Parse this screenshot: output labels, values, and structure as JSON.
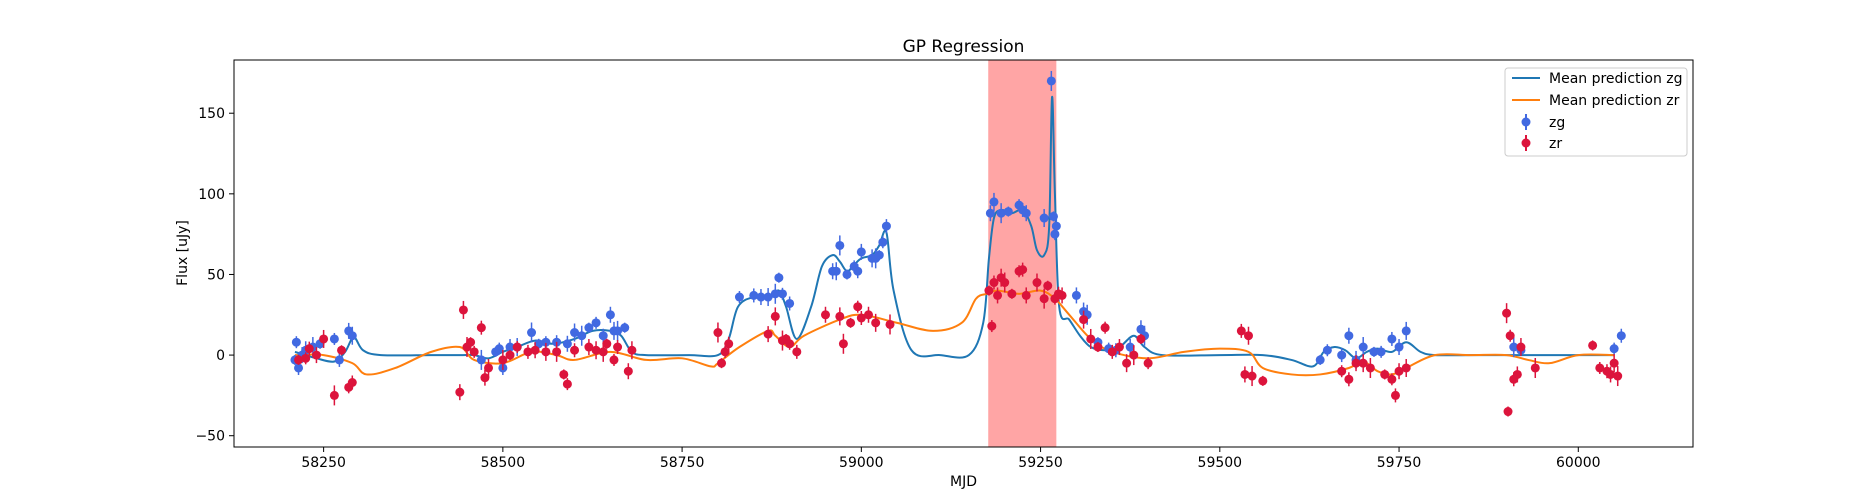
{
  "chart_data": {
    "type": "scatter",
    "title": "GP Regression",
    "xlabel": "MJD",
    "ylabel": "Flux [uJy]",
    "xlim": [
      58125,
      60160
    ],
    "ylim": [
      -57,
      183
    ],
    "xticks": [
      58250,
      58500,
      58750,
      59000,
      59250,
      59500,
      59750,
      60000
    ],
    "yticks": [
      -50,
      0,
      50,
      100,
      150
    ],
    "grid": false,
    "legend_position": "top-right",
    "highlight_span": {
      "x": [
        59177,
        59272
      ],
      "color": "#ff7f7f"
    },
    "series": [
      {
        "name": "Mean prediction zg",
        "kind": "line",
        "color": "#1f77b4",
        "x": [
          58210,
          58240,
          58265,
          58280,
          58292,
          58305,
          58330,
          58400,
          58440,
          58460,
          58480,
          58500,
          58520,
          58545,
          58570,
          58600,
          58625,
          58650,
          58665,
          58680,
          58700,
          58760,
          58800,
          58815,
          58828,
          58850,
          58875,
          58885,
          58895,
          58910,
          58930,
          58945,
          58960,
          58970,
          58980,
          58990,
          59000,
          59015,
          59025,
          59035,
          59045,
          59070,
          59110,
          59150,
          59170,
          59178,
          59185,
          59195,
          59210,
          59225,
          59237,
          59245,
          59255,
          59262,
          59266,
          59270,
          59276,
          59290,
          59305,
          59320,
          59340,
          59360,
          59380,
          59395,
          59420,
          59500,
          59560,
          59600,
          59630,
          59645,
          59660,
          59675,
          59690,
          59705,
          59720,
          59740,
          59760,
          59780,
          59800,
          59850,
          59900,
          59950,
          60000,
          60050
        ],
        "y": [
          2,
          -2,
          -4,
          2,
          11,
          3,
          0,
          0,
          0,
          0,
          -2,
          2,
          5,
          9,
          7,
          10,
          15,
          15,
          12,
          2,
          0,
          0,
          0,
          10,
          30,
          36,
          36,
          40,
          30,
          10,
          30,
          55,
          62,
          58,
          52,
          56,
          60,
          62,
          68,
          76,
          40,
          3,
          0,
          0,
          20,
          60,
          85,
          90,
          88,
          90,
          80,
          65,
          62,
          80,
          160,
          100,
          30,
          22,
          12,
          5,
          3,
          5,
          12,
          5,
          0,
          0,
          0,
          -3,
          -7,
          2,
          5,
          3,
          -2,
          2,
          4,
          2,
          8,
          2,
          0,
          0,
          0,
          0,
          0,
          0
        ]
      },
      {
        "name": "Mean prediction zr",
        "kind": "line",
        "color": "#ff7f0e",
        "x": [
          58210,
          58250,
          58290,
          58310,
          58350,
          58400,
          58440,
          58460,
          58500,
          58540,
          58575,
          58600,
          58650,
          58700,
          58750,
          58790,
          58800,
          58830,
          58870,
          58880,
          58900,
          58920,
          58970,
          59000,
          59050,
          59100,
          59140,
          59160,
          59175,
          59190,
          59220,
          59250,
          59270,
          59290,
          59320,
          59350,
          59400,
          59450,
          59500,
          59540,
          59560,
          59600,
          59640,
          59680,
          59700,
          59720,
          59740,
          59760,
          59800,
          59850,
          59900,
          59930,
          59960,
          60000,
          60050
        ],
        "y": [
          0,
          0,
          -5,
          -12,
          -8,
          2,
          5,
          -3,
          -5,
          2,
          0,
          -3,
          2,
          -3,
          -2,
          -7,
          -5,
          5,
          15,
          12,
          5,
          12,
          22,
          25,
          20,
          15,
          20,
          35,
          38,
          40,
          38,
          40,
          35,
          25,
          10,
          2,
          -2,
          2,
          4,
          2,
          -8,
          -12,
          -12,
          -8,
          -4,
          -10,
          -12,
          -8,
          0,
          0,
          0,
          -3,
          -5,
          0,
          0
        ]
      },
      {
        "name": "zg",
        "kind": "points",
        "color": "#4169e1",
        "x": [
          58210,
          58212,
          58215,
          58220,
          58225,
          58235,
          58245,
          58265,
          58272,
          58285,
          58290,
          58470,
          58490,
          58495,
          58500,
          58510,
          58520,
          58540,
          58550,
          58560,
          58575,
          58590,
          58600,
          58610,
          58620,
          58630,
          58640,
          58650,
          58655,
          58660,
          58670,
          58830,
          58850,
          58860,
          58870,
          58880,
          58885,
          58890,
          58900,
          58960,
          58965,
          58970,
          58980,
          58990,
          58995,
          59000,
          59015,
          59020,
          59025,
          59030,
          59035,
          59180,
          59185,
          59195,
          59205,
          59220,
          59225,
          59230,
          59255,
          59265,
          59268,
          59270,
          59272,
          59300,
          59310,
          59315,
          59330,
          59345,
          59355,
          59375,
          59390,
          59395,
          59640,
          59650,
          59670,
          59680,
          59690,
          59700,
          59715,
          59725,
          59740,
          59750,
          59760,
          59910,
          59920,
          60050,
          60060
        ],
        "y": [
          -3,
          8,
          -8,
          0,
          3,
          5,
          7,
          10,
          -3,
          15,
          12,
          -3,
          2,
          4,
          -8,
          5,
          5,
          14,
          7,
          8,
          8,
          7,
          14,
          12,
          17,
          20,
          12,
          25,
          15,
          15,
          17,
          36,
          37,
          36,
          36,
          38,
          48,
          38,
          32,
          52,
          52,
          68,
          50,
          55,
          52,
          64,
          60,
          60,
          62,
          70,
          80,
          88,
          95,
          88,
          89,
          93,
          90,
          88,
          85,
          170,
          86,
          75,
          80,
          37,
          27,
          25,
          8,
          4,
          3,
          5,
          16,
          12,
          -3,
          3,
          0,
          12,
          -3,
          5,
          2,
          2,
          10,
          5,
          15,
          5,
          3,
          4,
          12
        ]
      },
      {
        "name": "zr",
        "kind": "points",
        "color": "#dc143c",
        "x": [
          58215,
          58225,
          58230,
          58240,
          58250,
          58265,
          58275,
          58285,
          58290,
          58440,
          58445,
          58450,
          58455,
          58460,
          58470,
          58475,
          58480,
          58500,
          58510,
          58520,
          58535,
          58545,
          58560,
          58575,
          58585,
          58590,
          58600,
          58620,
          58630,
          58640,
          58645,
          58655,
          58660,
          58675,
          58680,
          58800,
          58805,
          58810,
          58815,
          58870,
          58880,
          58890,
          58895,
          58900,
          58910,
          58950,
          58970,
          58975,
          58985,
          58995,
          59000,
          59010,
          59020,
          59040,
          59178,
          59182,
          59185,
          59190,
          59195,
          59200,
          59210,
          59220,
          59225,
          59230,
          59245,
          59255,
          59260,
          59270,
          59275,
          59280,
          59310,
          59320,
          59330,
          59340,
          59350,
          59360,
          59370,
          59380,
          59390,
          59400,
          59530,
          59535,
          59540,
          59545,
          59560,
          59670,
          59680,
          59690,
          59700,
          59710,
          59730,
          59740,
          59745,
          59750,
          59760,
          59900,
          59902,
          59905,
          59910,
          59915,
          59920,
          59940,
          60020,
          60030,
          60040,
          60045,
          60050,
          60055
        ],
        "y": [
          -3,
          -2,
          4,
          0,
          10,
          -25,
          3,
          -20,
          -17,
          -23,
          28,
          5,
          8,
          2,
          17,
          -14,
          -8,
          -3,
          0,
          5,
          2,
          3,
          2,
          2,
          -12,
          -18,
          3,
          5,
          3,
          2,
          7,
          -3,
          5,
          -10,
          3,
          14,
          -5,
          2,
          7,
          13,
          24,
          9,
          10,
          7,
          2,
          25,
          24,
          7,
          20,
          30,
          23,
          25,
          20,
          19,
          40,
          18,
          45,
          37,
          48,
          45,
          38,
          52,
          53,
          37,
          45,
          35,
          43,
          35,
          38,
          37,
          22,
          10,
          5,
          17,
          2,
          5,
          -5,
          0,
          10,
          -5,
          15,
          -12,
          12,
          -13,
          -16,
          -10,
          -15,
          -5,
          -5,
          -8,
          -12,
          -15,
          -25,
          -10,
          -8,
          26,
          -35,
          12,
          -15,
          -12,
          5,
          -8,
          6,
          -8,
          -10,
          -12,
          -5,
          -13
        ]
      }
    ]
  }
}
